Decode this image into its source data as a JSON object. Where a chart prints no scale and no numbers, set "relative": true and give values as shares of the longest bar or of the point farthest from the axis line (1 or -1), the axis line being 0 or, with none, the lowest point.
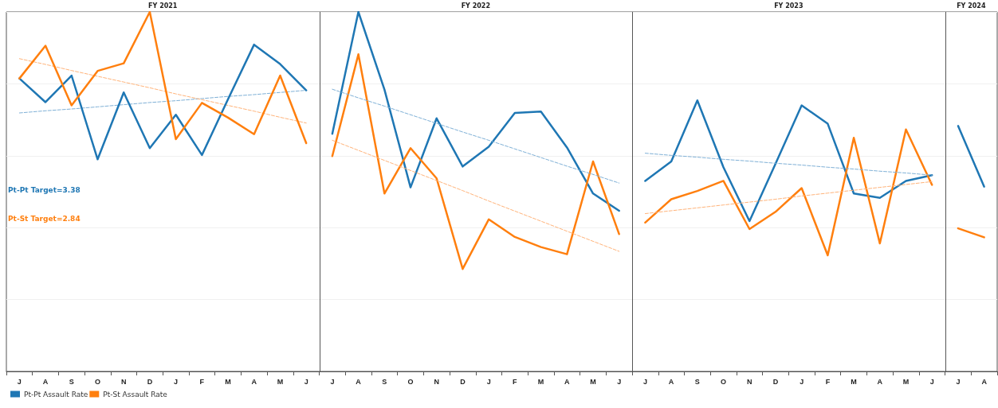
{
  "chart_data": {
    "type": "line",
    "relative": true,
    "grid": "y",
    "legend": "bottom left",
    "line_style": "solid",
    "marker": "none",
    "categories": [
      "J",
      "A",
      "S",
      "O",
      "N",
      "D",
      "J",
      "F",
      "M",
      "A",
      "M",
      "J",
      "J",
      "A",
      "S",
      "O",
      "N",
      "D",
      "J",
      "F",
      "M",
      "A",
      "M",
      "J",
      "J",
      "A",
      "S",
      "O",
      "N",
      "D",
      "J",
      "F",
      "M",
      "A",
      "M",
      "J",
      "J",
      "A"
    ],
    "series": [
      {
        "name": "Pt-Pt Assault Rate",
        "color": "#1f77b4",
        "values": [
          0.815,
          0.749,
          0.823,
          0.59,
          0.776,
          0.621,
          0.714,
          0.602,
          0.757,
          0.909,
          0.855,
          0.782,
          null,
          null,
          null,
          null,
          null,
          null,
          null,
          null,
          null,
          null,
          null,
          null,
          null,
          null,
          null,
          null,
          null,
          null,
          null,
          null,
          null,
          null,
          null,
          null,
          null,
          null
        ]
      },
      {
        "name": "Pt-St Assault Rate",
        "color": "#ff7f0e",
        "values": [
          0.815,
          0.906,
          0.74,
          0.836,
          0.857,
          1.0,
          0.646,
          0.747,
          0.706,
          0.66,
          0.823,
          0.635,
          null,
          null,
          null,
          null,
          null,
          null,
          null,
          null,
          null,
          null,
          null,
          null,
          null,
          null,
          null,
          null,
          null,
          null,
          null,
          null,
          null,
          null,
          null,
          null,
          null,
          null
        ]
      },
      {
        "type": "line",
        "line_style": "dashed",
        "color": "#7fb0d6",
        "values": [
          0.719,
          0.725,
          0.73,
          0.736,
          0.742,
          0.748,
          0.753,
          0.759,
          0.765,
          0.77,
          0.776,
          0.782,
          null,
          null,
          null,
          null,
          null,
          null,
          null,
          null,
          null,
          null,
          null,
          null,
          null,
          null,
          null,
          null,
          null,
          null,
          null,
          null,
          null,
          null,
          null,
          null,
          null,
          null
        ]
      },
      {
        "type": "line",
        "line_style": "dashed",
        "color": "#ffb37a",
        "values": [
          0.87,
          0.854,
          0.837,
          0.821,
          0.805,
          0.789,
          0.772,
          0.756,
          0.74,
          0.724,
          0.707,
          0.691,
          null,
          null,
          null,
          null,
          null,
          null,
          null,
          null,
          null,
          null,
          null,
          null,
          null,
          null,
          null,
          null,
          null,
          null,
          null,
          null,
          null,
          null,
          null,
          null,
          null,
          null
        ]
      },
      {
        "color": "#1f77b4",
        "values": [
          null,
          null,
          null,
          null,
          null,
          null,
          null,
          null,
          null,
          null,
          null,
          null,
          0.661,
          1.0,
          0.784,
          0.512,
          0.704,
          0.57,
          0.625,
          0.719,
          0.723,
          0.623,
          0.495,
          0.447,
          null,
          null,
          null,
          null,
          null,
          null,
          null,
          null,
          null,
          null,
          null,
          null,
          null,
          null
        ]
      },
      {
        "color": "#ff7f0e",
        "values": [
          null,
          null,
          null,
          null,
          null,
          null,
          null,
          null,
          null,
          null,
          null,
          null,
          0.599,
          0.882,
          0.495,
          0.621,
          0.537,
          0.285,
          0.423,
          0.374,
          0.346,
          0.326,
          0.584,
          0.382,
          null,
          null,
          null,
          null,
          null,
          null,
          null,
          null,
          null,
          null,
          null,
          null,
          null,
          null
        ]
      },
      {
        "type": "line",
        "line_style": "dashed",
        "color": "#7fb0d6",
        "values": [
          null,
          null,
          null,
          null,
          null,
          null,
          null,
          null,
          null,
          null,
          null,
          null,
          0.785,
          0.761,
          0.738,
          0.714,
          0.69,
          0.666,
          0.643,
          0.619,
          0.595,
          0.571,
          0.548,
          0.524,
          null,
          null,
          null,
          null,
          null,
          null,
          null,
          null,
          null,
          null,
          null,
          null,
          null,
          null
        ]
      },
      {
        "type": "line",
        "line_style": "dashed",
        "color": "#ffb37a",
        "values": [
          null,
          null,
          null,
          null,
          null,
          null,
          null,
          null,
          null,
          null,
          null,
          null,
          0.643,
          0.615,
          0.587,
          0.559,
          0.531,
          0.503,
          0.474,
          0.446,
          0.418,
          0.39,
          0.362,
          0.334,
          null,
          null,
          null,
          null,
          null,
          null,
          null,
          null,
          null,
          null,
          null,
          null,
          null,
          null
        ]
      },
      {
        "color": "#1f77b4",
        "values": [
          null,
          null,
          null,
          null,
          null,
          null,
          null,
          null,
          null,
          null,
          null,
          null,
          null,
          null,
          null,
          null,
          null,
          null,
          null,
          null,
          null,
          null,
          null,
          null,
          0.53,
          0.584,
          0.754,
          0.568,
          0.418,
          0.578,
          0.74,
          0.689,
          0.495,
          0.483,
          0.53,
          0.546,
          null,
          null
        ]
      },
      {
        "color": "#ff7f0e",
        "values": [
          null,
          null,
          null,
          null,
          null,
          null,
          null,
          null,
          null,
          null,
          null,
          null,
          null,
          null,
          null,
          null,
          null,
          null,
          null,
          null,
          null,
          null,
          null,
          null,
          0.414,
          0.479,
          0.502,
          0.53,
          0.396,
          0.444,
          0.51,
          0.323,
          0.65,
          0.356,
          0.673,
          0.519,
          null,
          null
        ]
      },
      {
        "type": "line",
        "line_style": "dashed",
        "color": "#7fb0d6",
        "values": [
          null,
          null,
          null,
          null,
          null,
          null,
          null,
          null,
          null,
          null,
          null,
          null,
          null,
          null,
          null,
          null,
          null,
          null,
          null,
          null,
          null,
          null,
          null,
          null,
          0.607,
          0.601,
          0.596,
          0.59,
          0.585,
          0.579,
          0.574,
          0.568,
          0.563,
          0.557,
          0.552,
          0.546,
          null,
          null
        ]
      },
      {
        "type": "line",
        "line_style": "dashed",
        "color": "#ffb37a",
        "values": [
          null,
          null,
          null,
          null,
          null,
          null,
          null,
          null,
          null,
          null,
          null,
          null,
          null,
          null,
          null,
          null,
          null,
          null,
          null,
          null,
          null,
          null,
          null,
          null,
          0.439,
          0.447,
          0.455,
          0.463,
          0.471,
          0.479,
          0.488,
          0.496,
          0.504,
          0.512,
          0.52,
          0.528,
          null,
          null
        ]
      },
      {
        "color": "#1f77b4",
        "values": [
          null,
          null,
          null,
          null,
          null,
          null,
          null,
          null,
          null,
          null,
          null,
          null,
          null,
          null,
          null,
          null,
          null,
          null,
          null,
          null,
          null,
          null,
          null,
          null,
          null,
          null,
          null,
          null,
          null,
          null,
          null,
          null,
          null,
          null,
          null,
          null,
          0.683,
          0.514
        ]
      },
      {
        "color": "#ff7f0e",
        "values": [
          null,
          null,
          null,
          null,
          null,
          null,
          null,
          null,
          null,
          null,
          null,
          null,
          null,
          null,
          null,
          null,
          null,
          null,
          null,
          null,
          null,
          null,
          null,
          null,
          null,
          null,
          null,
          null,
          null,
          null,
          null,
          null,
          null,
          null,
          null,
          null,
          0.398,
          0.373
        ]
      }
    ],
    "annotations": [
      "FY 2021",
      "FY 2022",
      "FY 2023",
      "FY 2024",
      "Pt-Pt Target=3.38",
      "Pt-St Target=2.84"
    ]
  }
}
